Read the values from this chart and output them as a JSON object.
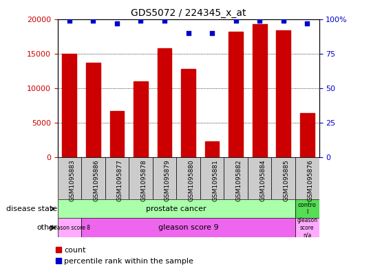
{
  "title": "GDS5072 / 224345_x_at",
  "samples": [
    "GSM1095883",
    "GSM1095886",
    "GSM1095877",
    "GSM1095878",
    "GSM1095879",
    "GSM1095880",
    "GSM1095881",
    "GSM1095882",
    "GSM1095884",
    "GSM1095885",
    "GSM1095876"
  ],
  "counts": [
    15000,
    13700,
    6700,
    11000,
    15800,
    12800,
    2300,
    18200,
    19300,
    18400,
    6400
  ],
  "percentiles": [
    99,
    99,
    97,
    99,
    99,
    90,
    90,
    99,
    99,
    99,
    97
  ],
  "bar_color": "#cc0000",
  "dot_color": "#0000cc",
  "ylim_left": [
    0,
    20000
  ],
  "ylim_right": [
    0,
    100
  ],
  "yticks_left": [
    0,
    5000,
    10000,
    15000,
    20000
  ],
  "yticks_right": [
    0,
    25,
    50,
    75,
    100
  ],
  "legend_items": [
    {
      "label": "count",
      "color": "#cc0000"
    },
    {
      "label": "percentile rank within the sample",
      "color": "#0000cc"
    }
  ],
  "bg_color": "#ffffff",
  "tick_color_left": "#cc0000",
  "tick_color_right": "#0000cc",
  "bar_width": 0.6,
  "prostate_color": "#aaffaa",
  "control_color": "#55dd55",
  "gleason8_color": "#ffaaff",
  "gleason9_color": "#ee66ee",
  "gleasonNA_color": "#ffaaff",
  "xticklabel_bg": "#cccccc"
}
